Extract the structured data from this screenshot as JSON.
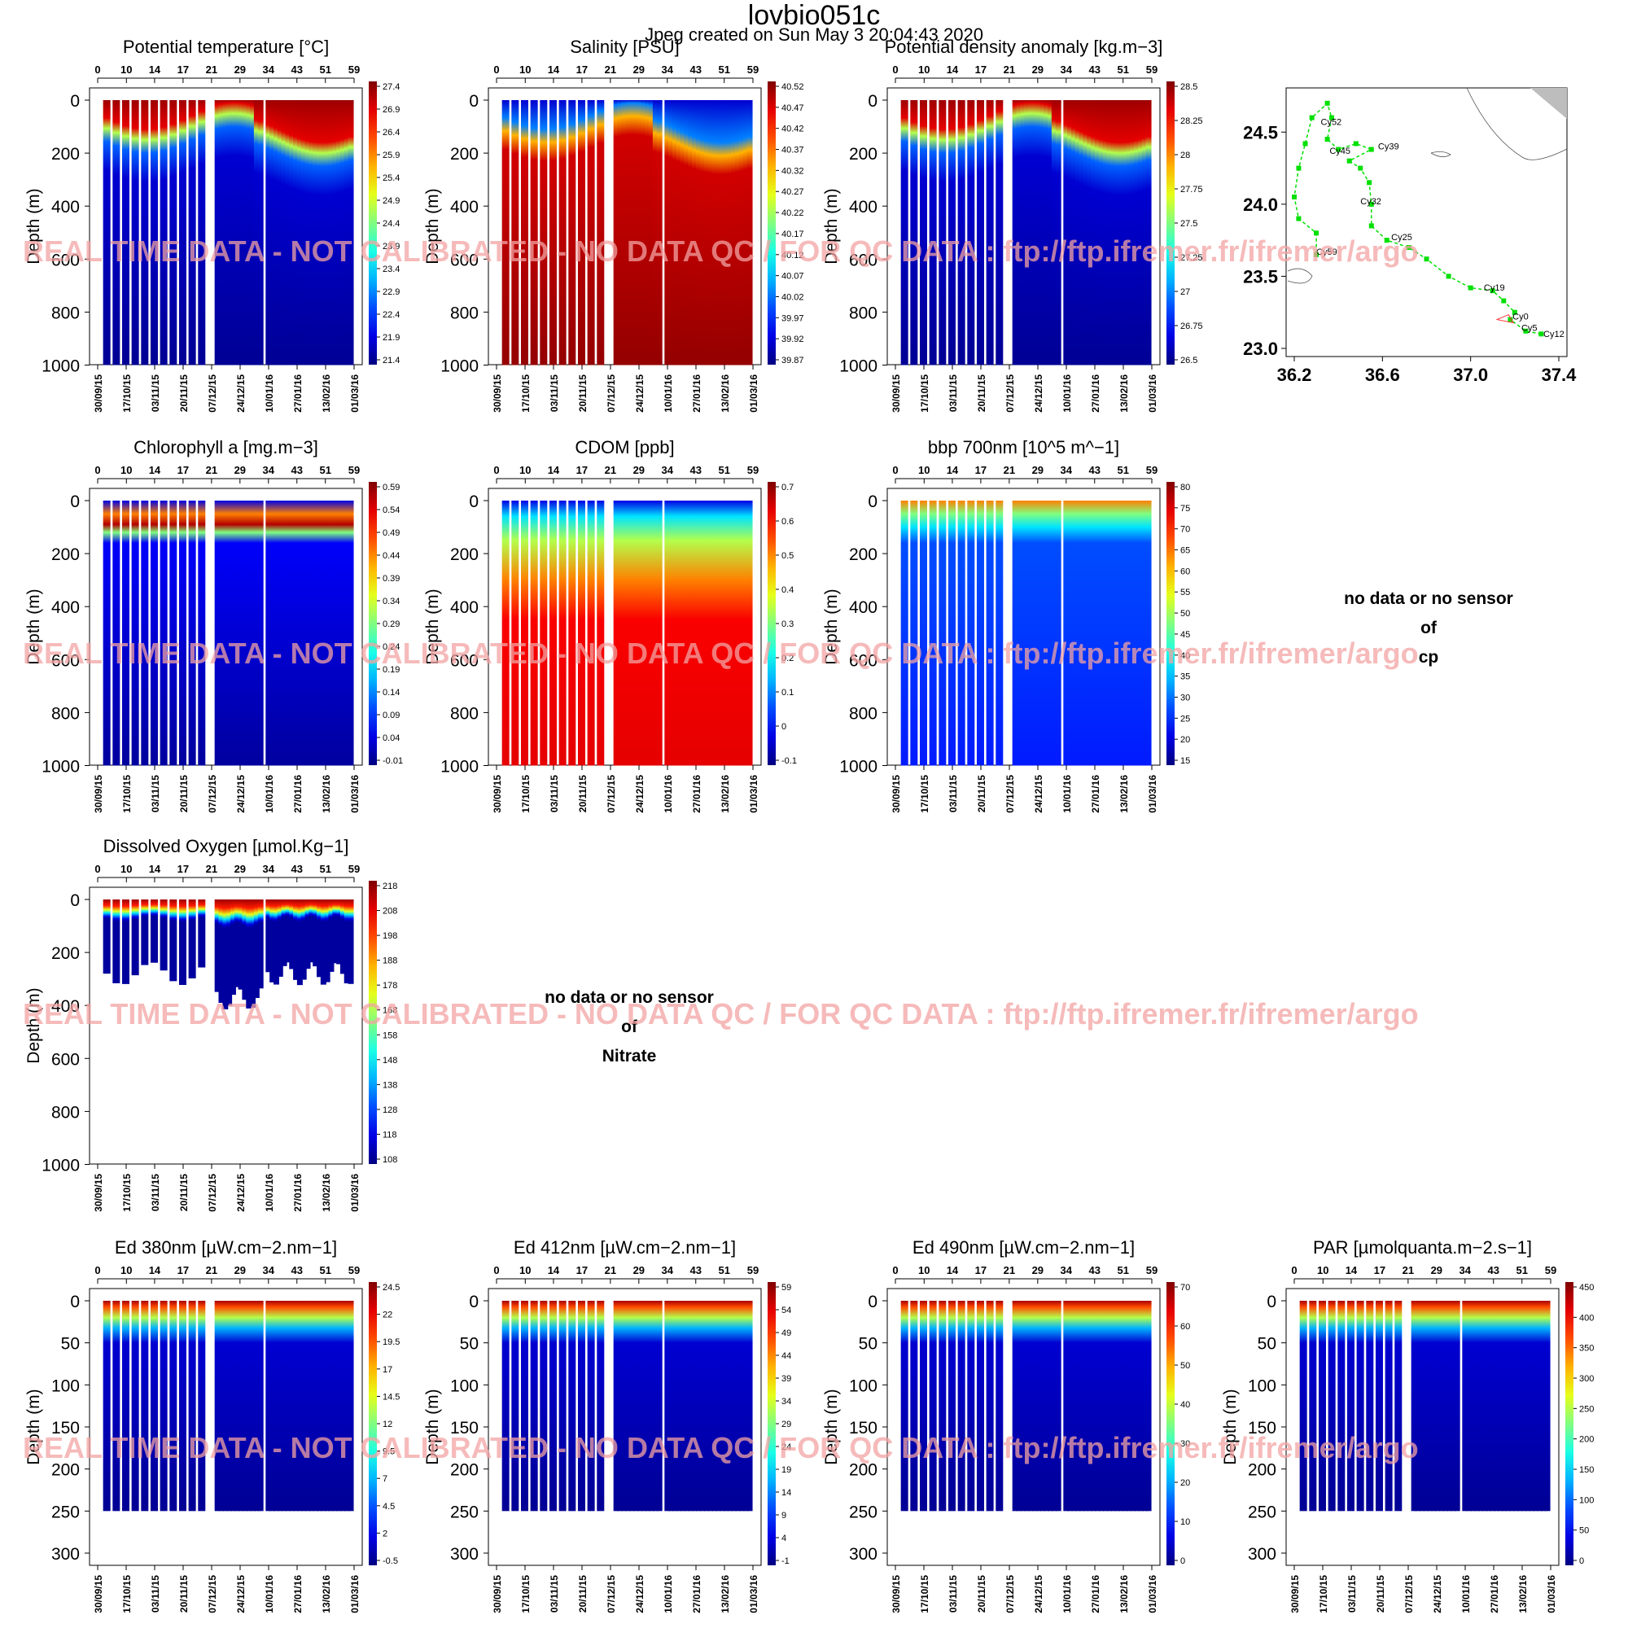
{
  "header": {
    "title": "lovbio051c",
    "subtitle": "Jpeg created on  Sun May  3 20:04:43 2020"
  },
  "watermark": "REAL TIME DATA - NOT CALIBRATED - NO DATA QC   /  FOR QC DATA : ftp://ftp.ifremer.fr/ifremer/argo",
  "common": {
    "ylabel": "Depth (m)",
    "cycle_ticks": [
      "0",
      "10",
      "14",
      "17",
      "21",
      "29",
      "34",
      "43",
      "51",
      "59"
    ],
    "date_ticks": [
      "30/09/15",
      "17/10/15",
      "03/11/15",
      "20/11/15",
      "07/12/15",
      "24/12/15",
      "10/01/16",
      "27/01/16",
      "13/02/16",
      "01/03/16"
    ],
    "ylim_deep": [
      1000,
      0
    ],
    "ylim_shallow": [
      300,
      0
    ]
  },
  "chart_data": [
    {
      "type": "heatmap",
      "title": "Potential temperature [°C]",
      "ylim": [
        1000,
        0
      ],
      "yticks": [
        "0",
        "200",
        "400",
        "600",
        "800",
        "1000"
      ],
      "colorbar_ticks": [
        "27.4",
        "26.9",
        "26.4",
        "25.9",
        "25.4",
        "24.9",
        "24.4",
        "23.9",
        "23.4",
        "22.9",
        "22.4",
        "21.9",
        "21.4"
      ]
    },
    {
      "type": "heatmap",
      "title": "Salinity [PSU]",
      "ylim": [
        1000,
        0
      ],
      "yticks": [
        "0",
        "200",
        "400",
        "600",
        "800",
        "1000"
      ],
      "colorbar_ticks": [
        "40.52",
        "40.47",
        "40.42",
        "40.37",
        "40.32",
        "40.27",
        "40.22",
        "40.17",
        "40.12",
        "40.07",
        "40.02",
        "39.97",
        "39.92",
        "39.87"
      ]
    },
    {
      "type": "heatmap",
      "title": "Potential density anomaly [kg.m−3]",
      "ylim": [
        1000,
        0
      ],
      "yticks": [
        "0",
        "200",
        "400",
        "600",
        "800",
        "1000"
      ],
      "colorbar_ticks": [
        "28.5",
        "28.25",
        "28",
        "27.75",
        "27.5",
        "27.25",
        "27",
        "26.75",
        "26.5"
      ]
    },
    {
      "type": "heatmap",
      "title": "Chlorophyll a [mg.m−3]",
      "ylim": [
        1000,
        0
      ],
      "yticks": [
        "0",
        "200",
        "400",
        "600",
        "800",
        "1000"
      ],
      "colorbar_ticks": [
        "0.59",
        "0.54",
        "0.49",
        "0.44",
        "0.39",
        "0.34",
        "0.29",
        "0.24",
        "0.19",
        "0.14",
        "0.09",
        "0.04",
        "-0.01"
      ]
    },
    {
      "type": "heatmap",
      "title": "CDOM  [ppb]",
      "ylim": [
        1000,
        0
      ],
      "yticks": [
        "0",
        "200",
        "400",
        "600",
        "800",
        "1000"
      ],
      "colorbar_ticks": [
        "0.7",
        "0.6",
        "0.5",
        "0.4",
        "0.3",
        "0.2",
        "0.1",
        "0",
        "-0.1"
      ]
    },
    {
      "type": "heatmap",
      "title": "bbp 700nm [10^5 m^−1]",
      "ylim": [
        1000,
        0
      ],
      "yticks": [
        "0",
        "200",
        "400",
        "600",
        "800",
        "1000"
      ],
      "colorbar_ticks": [
        "80",
        "75",
        "70",
        "65",
        "60",
        "55",
        "50",
        "45",
        "40",
        "35",
        "30",
        "25",
        "20",
        "15"
      ]
    },
    {
      "type": "heatmap",
      "title": "Dissolved Oxygen [µmol.Kg−1]",
      "ylim": [
        1000,
        0
      ],
      "yticks": [
        "0",
        "200",
        "400",
        "600",
        "800",
        "1000"
      ],
      "colorbar_ticks": [
        "218",
        "208",
        "198",
        "188",
        "178",
        "168",
        "158",
        "148",
        "138",
        "128",
        "118",
        "108"
      ]
    },
    {
      "type": "heatmap",
      "title": "Ed 380nm [µW.cm−2.nm−1]",
      "ylim": [
        300,
        0
      ],
      "yticks": [
        "0",
        "50",
        "100",
        "150",
        "200",
        "250",
        "300"
      ],
      "colorbar_ticks": [
        "24.5",
        "22",
        "19.5",
        "17",
        "14.5",
        "12",
        "9.5",
        "7",
        "4.5",
        "2",
        "-0.5"
      ]
    },
    {
      "type": "heatmap",
      "title": "Ed 412nm [µW.cm−2.nm−1]",
      "ylim": [
        300,
        0
      ],
      "yticks": [
        "0",
        "50",
        "100",
        "150",
        "200",
        "250",
        "300"
      ],
      "colorbar_ticks": [
        "59",
        "54",
        "49",
        "44",
        "39",
        "34",
        "29",
        "24",
        "19",
        "14",
        "9",
        "4",
        "-1"
      ]
    },
    {
      "type": "heatmap",
      "title": "Ed 490nm [µW.cm−2.nm−1]",
      "ylim": [
        300,
        0
      ],
      "yticks": [
        "0",
        "50",
        "100",
        "150",
        "200",
        "250",
        "300"
      ],
      "colorbar_ticks": [
        "70",
        "60",
        "50",
        "40",
        "30",
        "20",
        "10",
        "0"
      ]
    },
    {
      "type": "heatmap",
      "title": "PAR [µmolquanta.m−2.s−1]",
      "ylim": [
        300,
        0
      ],
      "yticks": [
        "0",
        "50",
        "100",
        "150",
        "200",
        "250",
        "300"
      ],
      "colorbar_ticks": [
        "450",
        "400",
        "350",
        "300",
        "250",
        "200",
        "150",
        "100",
        "50",
        "0"
      ]
    },
    {
      "type": "scatter",
      "title": "",
      "xlim": [
        36.2,
        37.4
      ],
      "ylim": [
        23.0,
        24.75
      ],
      "xticks": [
        "36.2",
        "36.6",
        "37.0",
        "37.4"
      ],
      "yticks": [
        "24.5",
        "24.0",
        "23.5",
        "23.0"
      ],
      "labels": [
        "Cy52",
        "Cy39",
        "Cy45",
        "Cy32",
        "Cy25",
        "Cy59",
        "Cy19",
        "Cy0",
        "Cy5",
        "Cy12"
      ]
    }
  ],
  "nodata": {
    "cp": {
      "line1": "no data or no sensor",
      "line2": "of",
      "line3": "cp"
    },
    "nitrate": {
      "line1": "no data or no sensor",
      "line2": "of",
      "line3": "Nitrate"
    }
  },
  "colors": {
    "jet_dark_blue": "#00008b",
    "jet_red": "#b00000",
    "track": "#00e000",
    "land": "#bdbdbd"
  }
}
